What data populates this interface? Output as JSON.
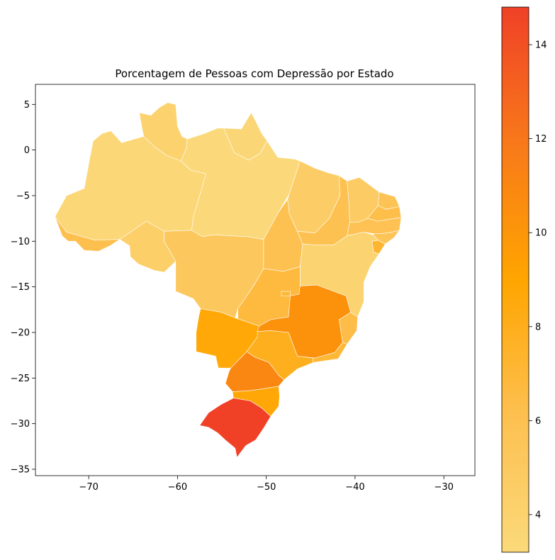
{
  "chart_data": {
    "type": "choropleth",
    "title": "Porcentagem de Pessoas com Depressão por Estado",
    "xlabel": "",
    "ylabel": "",
    "xlim": [
      -76,
      -26.5
    ],
    "ylim": [
      -35.7,
      7.2
    ],
    "x_ticks": [
      -70,
      -60,
      -50,
      -40,
      -30
    ],
    "y_ticks": [
      5,
      0,
      -5,
      -10,
      -15,
      -20,
      -25,
      -30,
      -35
    ],
    "x_tick_labels": [
      "−70",
      "−60",
      "−50",
      "−40",
      "−30"
    ],
    "y_tick_labels": [
      "5",
      "0",
      "−5",
      "−10",
      "−15",
      "−20",
      "−25",
      "−30",
      "−35"
    ],
    "colorbar": {
      "range": [
        3.2,
        14.8
      ],
      "ticks": [
        4,
        6,
        8,
        10,
        12,
        14
      ],
      "tick_labels": [
        "4",
        "6",
        "8",
        "10",
        "12",
        "14"
      ],
      "colors": [
        "#fbd97a",
        "#fdc050",
        "#ffa500",
        "#f8791a",
        "#f04127"
      ]
    },
    "regions": [
      {
        "id": "AM",
        "value": 3.4
      },
      {
        "id": "RR",
        "value": 4.0
      },
      {
        "id": "AP",
        "value": 3.5
      },
      {
        "id": "PA",
        "value": 3.3
      },
      {
        "id": "AC",
        "value": 6.2
      },
      {
        "id": "RO",
        "value": 4.4
      },
      {
        "id": "MT",
        "value": 5.3
      },
      {
        "id": "TO",
        "value": 6.0
      },
      {
        "id": "MA",
        "value": 4.6
      },
      {
        "id": "PI",
        "value": 6.0
      },
      {
        "id": "CE",
        "value": 4.8
      },
      {
        "id": "RN",
        "value": 5.8
      },
      {
        "id": "PB",
        "value": 6.3
      },
      {
        "id": "PE",
        "value": 5.9
      },
      {
        "id": "AL",
        "value": 5.6
      },
      {
        "id": "SE",
        "value": 7.2
      },
      {
        "id": "BA",
        "value": 3.8
      },
      {
        "id": "GO",
        "value": 6.7
      },
      {
        "id": "DF",
        "value": 7.0
      },
      {
        "id": "MS",
        "value": 8.7
      },
      {
        "id": "MG",
        "value": 10.3
      },
      {
        "id": "ES",
        "value": 6.4
      },
      {
        "id": "RJ",
        "value": 7.0
      },
      {
        "id": "SP",
        "value": 7.9
      },
      {
        "id": "PR",
        "value": 11.0
      },
      {
        "id": "SC",
        "value": 8.8
      },
      {
        "id": "RS",
        "value": 14.8
      }
    ]
  }
}
